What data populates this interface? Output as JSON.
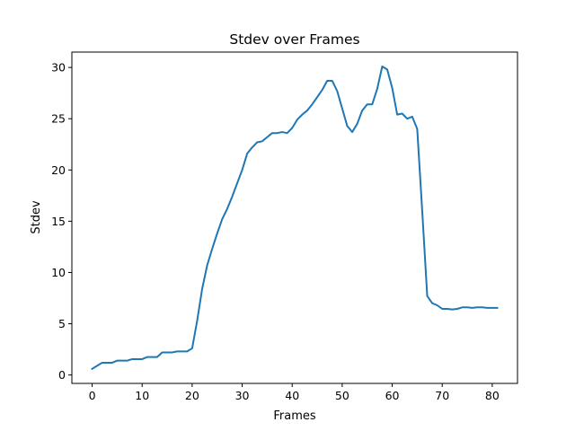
{
  "chart_data": {
    "type": "line",
    "title": "Stdev over Frames",
    "xlabel": "Frames",
    "ylabel": "Stdev",
    "xlim": [
      -4.05,
      85.05
    ],
    "ylim": [
      -0.82,
      31.5
    ],
    "xticks": [
      0,
      10,
      20,
      30,
      40,
      50,
      60,
      70,
      80
    ],
    "yticks": [
      0,
      5,
      10,
      15,
      20,
      25,
      30
    ],
    "grid": false,
    "series": [
      {
        "color": "#1f77b4",
        "x": [
          0,
          1,
          2,
          3,
          4,
          5,
          6,
          7,
          8,
          9,
          10,
          11,
          12,
          13,
          14,
          15,
          16,
          17,
          18,
          19,
          20,
          21,
          22,
          23,
          24,
          25,
          26,
          27,
          28,
          29,
          30,
          31,
          32,
          33,
          34,
          35,
          36,
          37,
          38,
          39,
          40,
          41,
          42,
          43,
          44,
          45,
          46,
          47,
          48,
          49,
          50,
          51,
          52,
          53,
          54,
          55,
          56,
          57,
          58,
          59,
          60,
          61,
          62,
          63,
          64,
          65,
          66,
          67,
          68,
          69,
          70,
          71,
          72,
          73,
          74,
          75,
          76,
          77,
          78,
          79,
          80,
          81
        ],
        "y": [
          0.6,
          0.9,
          1.2,
          1.2,
          1.2,
          1.4,
          1.4,
          1.4,
          1.55,
          1.55,
          1.55,
          1.75,
          1.75,
          1.75,
          2.2,
          2.2,
          2.2,
          2.3,
          2.3,
          2.3,
          2.6,
          5.3,
          8.4,
          10.7,
          12.3,
          13.8,
          15.2,
          16.2,
          17.4,
          18.7,
          20.0,
          21.6,
          22.2,
          22.7,
          22.8,
          23.2,
          23.6,
          23.6,
          23.7,
          23.6,
          24.1,
          24.9,
          25.4,
          25.8,
          26.4,
          27.1,
          27.8,
          28.7,
          28.7,
          27.7,
          26.0,
          24.3,
          23.7,
          24.5,
          25.8,
          26.4,
          26.4,
          27.9,
          30.1,
          29.8,
          28.0,
          25.4,
          25.5,
          25.0,
          25.2,
          24.0,
          16.0,
          7.7,
          7.0,
          6.8,
          6.45,
          6.45,
          6.4,
          6.45,
          6.6,
          6.6,
          6.55,
          6.6,
          6.6,
          6.55,
          6.55,
          6.55
        ]
      }
    ]
  }
}
